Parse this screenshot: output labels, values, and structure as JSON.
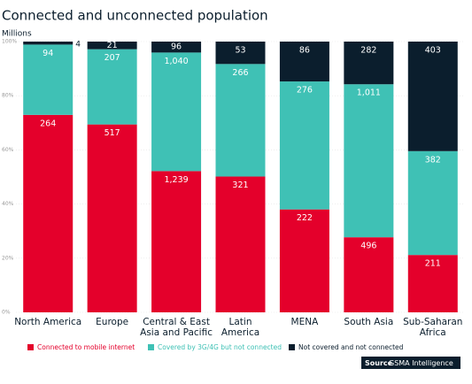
{
  "chart_data": {
    "type": "stacked_percent_bar",
    "title": "Connected and unconnected population",
    "unit_label": "Millions",
    "categories": [
      "North America",
      "Europe",
      "Central & East\nAsia and Pacific",
      "Latin\nAmerica",
      "MENA",
      "South Asia",
      "Sub-Saharan\nAfrica"
    ],
    "series": [
      {
        "name": "Connected to mobile internet",
        "color": "#e4002b",
        "values": [
          264,
          517,
          1239,
          321,
          222,
          496,
          211
        ],
        "value_labels": [
          "264",
          "517",
          "1,239",
          "321",
          "222",
          "496",
          "211"
        ]
      },
      {
        "name": "Covered by 3G/4G but not connected",
        "color": "#3fc1b5",
        "values": [
          94,
          207,
          1040,
          266,
          276,
          1011,
          382
        ],
        "value_labels": [
          "94",
          "207",
          "1,040",
          "266",
          "276",
          "1,011",
          "382"
        ]
      },
      {
        "name": "Not covered and not connected",
        "color": "#0b1e2d",
        "values": [
          4,
          21,
          96,
          53,
          86,
          282,
          403
        ]
      }
    ],
    "ylim": [
      0,
      100
    ],
    "yticks": [
      {
        "value": 0,
        "label": "0%"
      },
      {
        "value": 20,
        "label": "20%"
      },
      {
        "value": 40,
        "label": "40%"
      },
      {
        "value": 60,
        "label": "60%"
      },
      {
        "value": 80,
        "label": "80%"
      },
      {
        "value": 100,
        "label": "100%"
      }
    ],
    "grid": true,
    "legend": "bottom",
    "source": {
      "label": "Source",
      "text": "GSMA Intelligence"
    }
  }
}
